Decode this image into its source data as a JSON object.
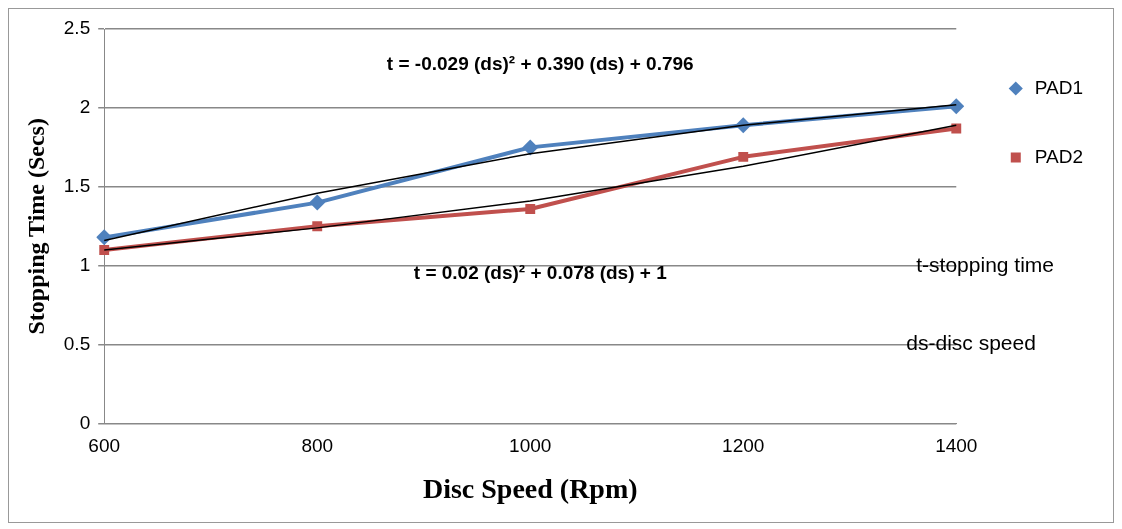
{
  "chart_data": {
    "type": "line",
    "xlabel": "Disc Speed (Rpm)",
    "ylabel": "Stopping Time (Secs)",
    "categories": [
      "600",
      "800",
      "1000",
      "1200",
      "1400"
    ],
    "series": [
      {
        "name": "PAD1",
        "color": "#4f81bd",
        "marker": "diamond",
        "values": [
          1.18,
          1.4,
          1.75,
          1.89,
          2.01
        ]
      },
      {
        "name": "PAD2",
        "color": "#c0504d",
        "marker": "square",
        "values": [
          1.1,
          1.25,
          1.36,
          1.69,
          1.87
        ]
      },
      {
        "type": "line",
        "color": "#000000",
        "marker": "none",
        "values": [
          1.16,
          1.46,
          1.71,
          1.89,
          2.02
        ]
      },
      {
        "type": "line",
        "color": "#000000",
        "marker": "none",
        "values": [
          1.1,
          1.24,
          1.41,
          1.63,
          1.89
        ]
      }
    ],
    "ylim": [
      0,
      2.5
    ],
    "yticks": [
      0,
      0.5,
      1,
      1.5,
      2,
      2.5
    ],
    "grid": "y",
    "legend": "right",
    "annotations": [
      "t = -0.029 (ds)² + 0.390 (ds) + 0.796",
      "t = 0.02 (ds)² + 0.078 (ds) + 1",
      "t-stopping time",
      "ds-disc speed"
    ]
  }
}
